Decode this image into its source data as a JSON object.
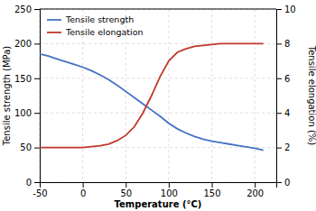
{
  "chart_data": {
    "type": "line",
    "xlabel": "Temperature (°C)",
    "ylabel": "Tensile strength (MPa)",
    "y2label": "Tensile elongation (%)",
    "x": [
      -50,
      -40,
      -30,
      -20,
      -10,
      0,
      10,
      20,
      30,
      40,
      50,
      60,
      70,
      80,
      90,
      100,
      110,
      120,
      130,
      140,
      150,
      160,
      170,
      180,
      190,
      200,
      210
    ],
    "series": [
      {
        "name": "Tensile strength",
        "color": "#4472c4",
        "values": [
          185,
          182,
          178,
          174,
          170,
          166,
          161,
          155,
          148,
          140,
          131,
          122,
          113,
          104,
          95,
          85,
          77,
          71,
          66,
          62,
          59,
          57,
          55,
          53,
          51,
          49,
          46
        ]
      },
      {
        "name": "Tensile elongation",
        "color": "#c0392b",
        "axis": "y2",
        "values": [
          2.0,
          2.0,
          2.0,
          2.0,
          2.0,
          2.0,
          2.05,
          2.1,
          2.2,
          2.4,
          2.7,
          3.2,
          4.0,
          5.0,
          6.1,
          7.0,
          7.5,
          7.7,
          7.85,
          7.9,
          7.95,
          8.0,
          8.0,
          8.0,
          8.0,
          8.0,
          8.0
        ]
      }
    ],
    "xlim": [
      -50,
      225
    ],
    "xticks": [
      -50,
      0,
      50,
      100,
      150,
      200
    ],
    "ylim": [
      0,
      250
    ],
    "yticks": [
      0,
      50,
      100,
      150,
      200,
      250
    ],
    "y2lim": [
      0,
      10
    ],
    "y2ticks": [
      0,
      2,
      4,
      6,
      8,
      10
    ],
    "grid": true,
    "legend": "upper left"
  }
}
